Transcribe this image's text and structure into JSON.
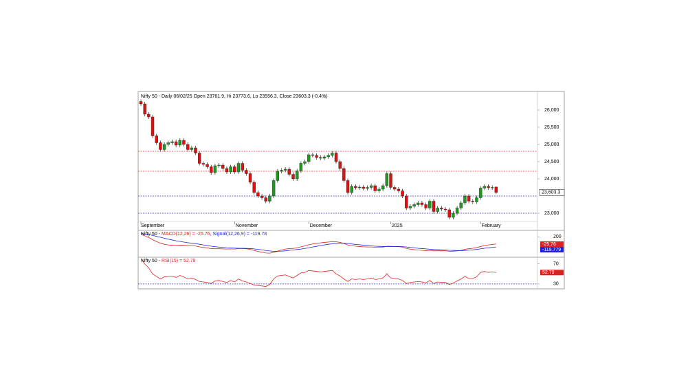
{
  "chart_data": [
    {
      "type": "candlestick",
      "title": "Nifty 50 - Daily 06/02/25 Open 23761.9, Hi 23773.6, Lo 23556.3, Close 23603.3 (-0.4%)",
      "categories": [
        "September",
        null,
        null,
        null,
        null,
        null,
        null,
        null,
        null,
        null,
        null,
        null,
        null,
        null,
        null,
        null,
        null,
        null,
        null,
        null,
        null,
        null,
        null,
        null,
        "November",
        null,
        null,
        null,
        null,
        null,
        null,
        null,
        null,
        null,
        null,
        null,
        null,
        null,
        null,
        null,
        null,
        null,
        null,
        "December",
        null,
        null,
        null,
        null,
        null,
        null,
        null,
        null,
        null,
        null,
        null,
        null,
        null,
        null,
        null,
        null,
        null,
        null,
        null,
        null,
        "2025",
        null,
        null,
        null,
        null,
        null,
        null,
        null,
        null,
        null,
        null,
        null,
        null,
        null,
        null,
        null,
        null,
        null,
        null,
        null,
        null,
        null,
        null,
        "February",
        null,
        null,
        null,
        null
      ],
      "open": [
        26250,
        26180,
        25880,
        25800,
        25250,
        25050,
        24850,
        25000,
        25050,
        25080,
        24980,
        25120,
        25000,
        24850,
        24900,
        24750,
        24450,
        24420,
        24350,
        24180,
        24380,
        24400,
        24300,
        24200,
        24350,
        24200,
        24450,
        24250,
        24150,
        23900,
        23600,
        23500,
        23450,
        23350,
        23500,
        23950,
        24220,
        24250,
        24280,
        24130,
        24000,
        24230,
        24450,
        24500,
        24700,
        24680,
        24620,
        24600,
        24640,
        24680,
        24750,
        24500,
        24300,
        23950,
        23600,
        23780,
        23740,
        23760,
        23720,
        23750,
        23800,
        23650,
        23700,
        23800,
        24150,
        23750,
        23700,
        23650,
        23500,
        23150,
        23200,
        23250,
        23300,
        23250,
        23150,
        23350,
        23050,
        23150,
        23120,
        23100,
        22880,
        23000,
        23150,
        23300,
        23500,
        23350,
        23330,
        23450,
        23730,
        23780,
        23740,
        23761.9
      ],
      "high": [
        26310,
        26240,
        25940,
        25860,
        25310,
        25110,
        25060,
        25110,
        25140,
        25140,
        25180,
        25180,
        25060,
        24960,
        24960,
        24810,
        24510,
        24480,
        24410,
        24440,
        24460,
        24460,
        24360,
        24410,
        24410,
        24510,
        24510,
        24310,
        24210,
        23960,
        23660,
        23560,
        23510,
        23560,
        24010,
        24280,
        24310,
        24340,
        24340,
        24190,
        24290,
        24510,
        24560,
        24760,
        24760,
        24740,
        24680,
        24700,
        24740,
        24810,
        24810,
        24560,
        24360,
        24010,
        23840,
        23840,
        23820,
        23820,
        23810,
        23860,
        23860,
        23760,
        23860,
        24210,
        24210,
        23810,
        23760,
        23710,
        23560,
        23260,
        23310,
        23360,
        23360,
        23310,
        23410,
        23410,
        23210,
        23210,
        23180,
        23160,
        23060,
        23210,
        23360,
        23560,
        23560,
        23410,
        23510,
        23790,
        23840,
        23840,
        23810,
        23773.6
      ],
      "low": [
        26120,
        25820,
        25740,
        25190,
        24990,
        24790,
        24790,
        24940,
        24990,
        24920,
        24920,
        24940,
        24790,
        24790,
        24690,
        24390,
        24360,
        24290,
        24120,
        24120,
        24320,
        24240,
        24140,
        24140,
        24140,
        24140,
        24190,
        24090,
        23840,
        23540,
        23440,
        23390,
        23290,
        23290,
        23440,
        23890,
        24160,
        24190,
        24070,
        23940,
        23940,
        24170,
        24390,
        24440,
        24620,
        24560,
        24540,
        24540,
        24580,
        24620,
        24440,
        24240,
        23890,
        23540,
        23540,
        23680,
        23680,
        23660,
        23660,
        23690,
        23590,
        23590,
        23640,
        23740,
        23690,
        23640,
        23590,
        23440,
        23090,
        23090,
        23140,
        23190,
        23190,
        23090,
        23090,
        22990,
        22990,
        23060,
        23040,
        22820,
        22820,
        22940,
        23090,
        23240,
        23290,
        23270,
        23270,
        23390,
        23670,
        23680,
        23680,
        23556.3
      ],
      "close": [
        26180,
        25880,
        25800,
        25250,
        25050,
        24850,
        25000,
        25050,
        25080,
        24980,
        25120,
        25000,
        24850,
        24900,
        24750,
        24450,
        24420,
        24350,
        24180,
        24380,
        24400,
        24300,
        24200,
        24350,
        24200,
        24450,
        24250,
        24150,
        23900,
        23600,
        23500,
        23450,
        23350,
        23500,
        23950,
        24220,
        24250,
        24280,
        24130,
        24000,
        24230,
        24450,
        24500,
        24700,
        24680,
        24620,
        24600,
        24640,
        24680,
        24750,
        24500,
        24300,
        23950,
        23600,
        23780,
        23740,
        23760,
        23720,
        23750,
        23800,
        23650,
        23700,
        23800,
        24150,
        23750,
        23700,
        23650,
        23500,
        23150,
        23200,
        23250,
        23300,
        23250,
        23150,
        23350,
        23050,
        23150,
        23120,
        23100,
        22880,
        23000,
        23150,
        23300,
        23500,
        23350,
        23330,
        23450,
        23730,
        23780,
        23740,
        23750,
        23603.3
      ],
      "close_label": "23,603.3",
      "up_color": "#1e9b1e",
      "down_color": "#e01010",
      "ylim": [
        22760,
        26540
      ],
      "yticks": [
        {
          "value": 23000,
          "label": "23,000"
        },
        {
          "value": 24000,
          "label": "24,000"
        },
        {
          "value": 24500,
          "label": "24,500"
        },
        {
          "value": 25000,
          "label": "25,000"
        },
        {
          "value": 25500,
          "label": "25,500"
        },
        {
          "value": 26000,
          "label": "26,000"
        }
      ],
      "levels": [
        {
          "value": 24800,
          "color": "#e03030"
        },
        {
          "value": 24220,
          "color": "#e03030"
        },
        {
          "value": 23500,
          "color": "#3030c0"
        },
        {
          "value": 23000,
          "color": "#3030c0"
        }
      ]
    },
    {
      "type": "line",
      "label_parts": [
        "Nifty 50 - ",
        "MACD(12,26) = -25.76",
        ", Signal(12,26,9) = -119.78"
      ],
      "series": [
        {
          "name": "MACD",
          "color": "#e02020",
          "values": [
            280,
            230,
            180,
            110,
            50,
            0,
            -35,
            -55,
            -65,
            -70,
            -65,
            -65,
            -75,
            -80,
            -90,
            -115,
            -135,
            -150,
            -170,
            -175,
            -175,
            -180,
            -185,
            -180,
            -185,
            -170,
            -170,
            -175,
            -195,
            -230,
            -260,
            -285,
            -310,
            -315,
            -290,
            -250,
            -215,
            -185,
            -170,
            -165,
            -145,
            -115,
            -85,
            -50,
            -25,
            -5,
            10,
            25,
            35,
            50,
            45,
            25,
            -10,
            -60,
            -80,
            -95,
            -105,
            -115,
            -120,
            -120,
            -130,
            -130,
            -125,
            -95,
            -100,
            -105,
            -110,
            -125,
            -165,
            -190,
            -205,
            -215,
            -225,
            -235,
            -225,
            -240,
            -240,
            -240,
            -240,
            -255,
            -255,
            -245,
            -225,
            -190,
            -175,
            -160,
            -140,
            -105,
            -75,
            -55,
            -40,
            -25.76
          ]
        },
        {
          "name": "Signal",
          "color": "#2020e0",
          "values": [
            300,
            290,
            270,
            245,
            215,
            185,
            155,
            125,
            100,
            75,
            55,
            35,
            15,
            0,
            -15,
            -35,
            -55,
            -75,
            -95,
            -110,
            -125,
            -135,
            -145,
            -150,
            -155,
            -160,
            -160,
            -165,
            -170,
            -180,
            -195,
            -210,
            -230,
            -245,
            -255,
            -255,
            -250,
            -240,
            -225,
            -215,
            -200,
            -185,
            -165,
            -145,
            -120,
            -100,
            -75,
            -55,
            -35,
            -20,
            -5,
            0,
            0,
            -10,
            -25,
            -40,
            -50,
            -65,
            -75,
            -85,
            -95,
            -100,
            -105,
            -105,
            -105,
            -105,
            -105,
            -110,
            -120,
            -135,
            -145,
            -160,
            -170,
            -180,
            -190,
            -200,
            -205,
            -210,
            -215,
            -225,
            -230,
            -235,
            -235,
            -230,
            -220,
            -210,
            -195,
            -180,
            -160,
            -145,
            -130,
            -119.779
          ]
        }
      ],
      "ylim": [
        -420,
        380
      ],
      "yticks": [
        200
      ]
    },
    {
      "type": "line",
      "label_parts": [
        "Nifty 50 - ",
        "RSI(15) = 52.79"
      ],
      "series": [
        {
          "name": "RSI",
          "color": "#e02020",
          "values": [
            80,
            70,
            62,
            50,
            45,
            40,
            44,
            45,
            46,
            43,
            47,
            44,
            40,
            42,
            39,
            35,
            34,
            33,
            31,
            36,
            37,
            35,
            33,
            37,
            34,
            40,
            36,
            34,
            31,
            28,
            27,
            26,
            25,
            29,
            40,
            46,
            47,
            48,
            45,
            42,
            47,
            52,
            53,
            57,
            56,
            55,
            54,
            55,
            56,
            57,
            50,
            46,
            40,
            35,
            40,
            39,
            40,
            39,
            40,
            42,
            39,
            40,
            42,
            50,
            42,
            41,
            40,
            37,
            31,
            33,
            34,
            35,
            34,
            32,
            37,
            31,
            34,
            33,
            33,
            29,
            32,
            36,
            40,
            45,
            41,
            41,
            44,
            53,
            55,
            53,
            54,
            52.79
          ]
        }
      ],
      "ylim": [
        23,
        82
      ],
      "yticks": [
        30,
        70
      ],
      "levels": [
        {
          "value": 30,
          "color": "#3030c0"
        }
      ]
    }
  ]
}
